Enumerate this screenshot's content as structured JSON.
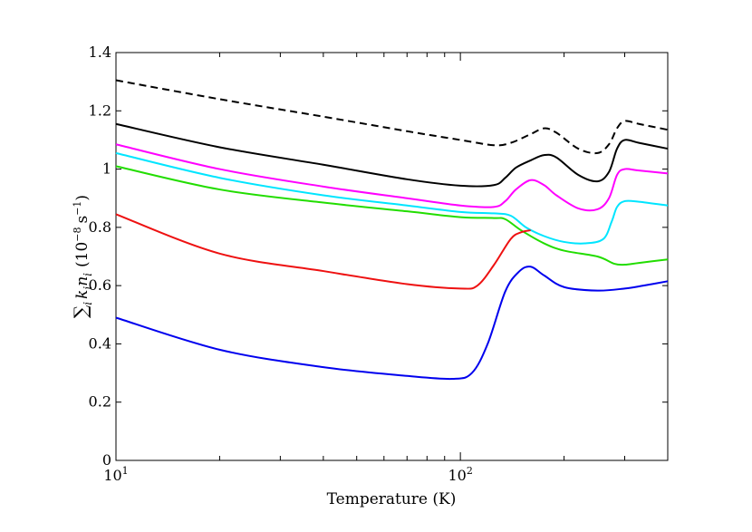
{
  "chart_data": {
    "type": "line",
    "xlabel": "Temperature (K)",
    "ylabel_main": "∑",
    "ylabel_sub": "i",
    "ylabel_k": "k",
    "ylabel_n": "n",
    "ylabel_units": "(10",
    "ylabel_exp": "−8",
    "ylabel_s": "s",
    "ylabel_sexp": "−1",
    "ylabel_close": ")",
    "xscale": "log",
    "xlim": [
      10,
      400
    ],
    "ylim": [
      0,
      1.4
    ],
    "grid": false,
    "x_ticks": [
      {
        "value": 10,
        "base": "10",
        "exp": "1"
      },
      {
        "value": 100,
        "base": "10",
        "exp": "2"
      }
    ],
    "y_ticks": [
      {
        "value": 0,
        "label": "0"
      },
      {
        "value": 0.2,
        "label": "0.2"
      },
      {
        "value": 0.4,
        "label": "0.4"
      },
      {
        "value": 0.6,
        "label": "0.6"
      },
      {
        "value": 0.8,
        "label": "0.8"
      },
      {
        "value": 1.0,
        "label": "1"
      },
      {
        "value": 1.2,
        "label": "1.2"
      },
      {
        "value": 1.4,
        "label": "1.4"
      }
    ],
    "series": [
      {
        "color": "#000000",
        "dashed": true,
        "x": [
          10,
          20,
          40,
          70,
          100,
          125,
          140,
          160,
          175,
          190,
          220,
          250,
          270,
          285,
          300,
          330,
          400
        ],
        "y": [
          1.305,
          1.24,
          1.18,
          1.13,
          1.1,
          1.082,
          1.09,
          1.12,
          1.14,
          1.125,
          1.07,
          1.055,
          1.085,
          1.14,
          1.165,
          1.155,
          1.135
        ]
      },
      {
        "color": "#000000",
        "dashed": false,
        "x": [
          10,
          20,
          40,
          70,
          100,
          125,
          135,
          145,
          160,
          175,
          190,
          220,
          250,
          270,
          285,
          300,
          330,
          400
        ],
        "y": [
          1.155,
          1.075,
          1.015,
          0.965,
          0.943,
          0.945,
          0.97,
          1.005,
          1.03,
          1.048,
          1.04,
          0.98,
          0.958,
          0.99,
          1.07,
          1.1,
          1.09,
          1.07
        ]
      },
      {
        "color": "#ff00ff",
        "dashed": false,
        "x": [
          10,
          20,
          40,
          70,
          100,
          125,
          135,
          145,
          160,
          175,
          190,
          220,
          250,
          270,
          285,
          300,
          330,
          400
        ],
        "y": [
          1.085,
          1.0,
          0.94,
          0.9,
          0.875,
          0.87,
          0.89,
          0.93,
          0.962,
          0.945,
          0.91,
          0.865,
          0.862,
          0.9,
          0.98,
          1.0,
          0.995,
          0.985
        ]
      },
      {
        "color": "#00e5ff",
        "dashed": false,
        "x": [
          10,
          20,
          40,
          70,
          100,
          125,
          140,
          155,
          175,
          200,
          230,
          260,
          275,
          285,
          300,
          330,
          400
        ],
        "y": [
          1.055,
          0.97,
          0.91,
          0.875,
          0.853,
          0.848,
          0.84,
          0.8,
          0.77,
          0.75,
          0.745,
          0.76,
          0.82,
          0.87,
          0.89,
          0.888,
          0.875
        ]
      },
      {
        "color": "#22dd00",
        "dashed": false,
        "x": [
          10,
          20,
          40,
          70,
          100,
          125,
          135,
          150,
          175,
          200,
          250,
          280,
          300,
          330,
          400
        ],
        "y": [
          1.01,
          0.93,
          0.885,
          0.855,
          0.835,
          0.832,
          0.828,
          0.79,
          0.745,
          0.72,
          0.7,
          0.675,
          0.672,
          0.678,
          0.69
        ]
      },
      {
        "color": "#ee1111",
        "dashed": false,
        "x": [
          10,
          20,
          40,
          70,
          100,
          112,
          125,
          140,
          150,
          160
        ],
        "y": [
          0.845,
          0.71,
          0.65,
          0.605,
          0.59,
          0.6,
          0.67,
          0.76,
          0.783,
          0.79
        ]
      },
      {
        "color": "#0000ee",
        "dashed": false,
        "x": [
          10,
          20,
          40,
          70,
          95,
          108,
          120,
          135,
          148,
          160,
          175,
          200,
          250,
          300,
          340,
          400
        ],
        "y": [
          0.49,
          0.38,
          0.32,
          0.29,
          0.28,
          0.3,
          0.4,
          0.58,
          0.648,
          0.665,
          0.635,
          0.595,
          0.583,
          0.59,
          0.6,
          0.615
        ]
      }
    ]
  }
}
